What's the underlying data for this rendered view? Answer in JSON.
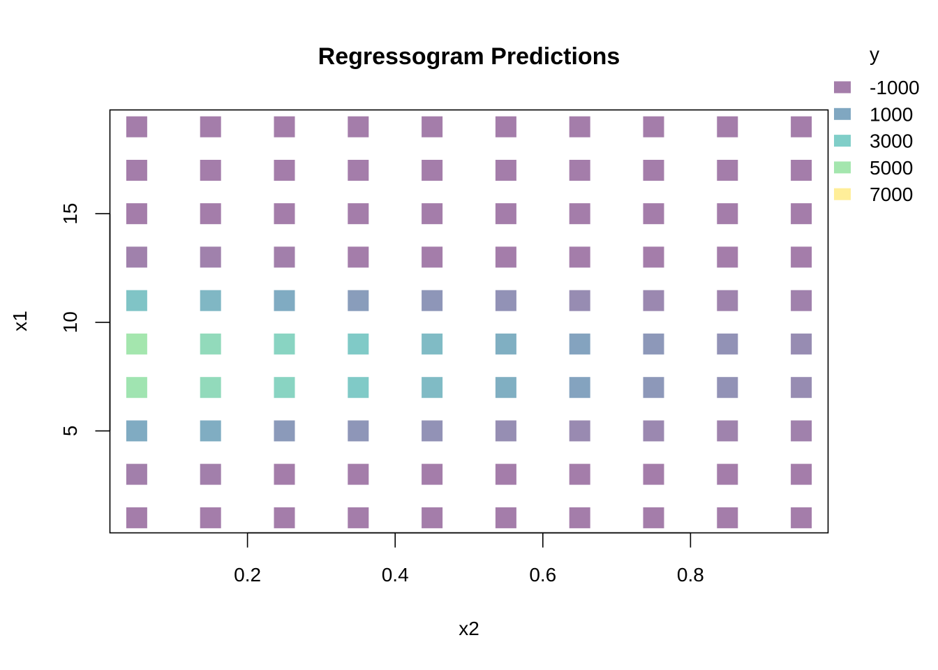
{
  "chart_data": {
    "type": "heatmap",
    "title": "Regressogram Predictions",
    "xlabel": "x2",
    "ylabel": "x1",
    "xlim": [
      0.0,
      1.0
    ],
    "ylim": [
      0.0,
      20.0
    ],
    "xticks": [
      {
        "value": 0.2,
        "label": "0.2"
      },
      {
        "value": 0.4,
        "label": "0.4"
      },
      {
        "value": 0.6,
        "label": "0.6"
      },
      {
        "value": 0.8,
        "label": "0.8"
      }
    ],
    "yticks": [
      {
        "value": 5,
        "label": "5"
      },
      {
        "value": 10,
        "label": "10"
      },
      {
        "value": 15,
        "label": "15"
      }
    ],
    "x": [
      0.05,
      0.15,
      0.25,
      0.35,
      0.45,
      0.55,
      0.65,
      0.75,
      0.85,
      0.95
    ],
    "y": [
      1,
      3,
      5,
      7,
      9,
      11,
      13,
      15,
      17,
      19
    ],
    "values": [
      [
        -1000,
        -1000,
        -1000,
        -1000,
        -1000,
        -1000,
        -1000,
        -1000,
        -1000,
        -1000
      ],
      [
        -900,
        -900,
        -1000,
        -1000,
        -1000,
        -1000,
        -1000,
        -1000,
        -1000,
        -1000
      ],
      [
        1200,
        1300,
        400,
        200,
        0,
        -200,
        -400,
        -500,
        -700,
        -800
      ],
      [
        4800,
        4000,
        3500,
        2800,
        2000,
        1400,
        800,
        300,
        0,
        -300
      ],
      [
        5000,
        4000,
        3500,
        2800,
        2000,
        1400,
        800,
        300,
        0,
        -300
      ],
      [
        2500,
        1800,
        1200,
        500,
        200,
        0,
        -300,
        -500,
        -700,
        -800
      ],
      [
        -800,
        -800,
        -900,
        -1000,
        -1000,
        -1000,
        -1000,
        -1000,
        -1000,
        -1000
      ],
      [
        -1000,
        -1000,
        -1000,
        -1000,
        -1000,
        -1000,
        -1000,
        -1000,
        -1000,
        -1000
      ],
      [
        -1000,
        -1000,
        -1000,
        -1000,
        -1000,
        -1000,
        -1000,
        -1000,
        -1000,
        -1000
      ],
      [
        -1000,
        -1000,
        -1000,
        -1000,
        -1000,
        -1000,
        -1000,
        -1000,
        -1000,
        -1000
      ]
    ],
    "legend": {
      "title": "y",
      "placement": "top-right",
      "entries": [
        {
          "label": "-1000",
          "value": -1000,
          "color": "#A47DAA"
        },
        {
          "label": "1000",
          "value": 1000,
          "color": "#80A7C1"
        },
        {
          "label": "3000",
          "value": 3000,
          "color": "#80CEC8"
        },
        {
          "label": "5000",
          "value": 5000,
          "color": "#A4E6AE"
        },
        {
          "label": "7000",
          "value": 7000,
          "color": "#FFEE99"
        }
      ]
    },
    "grid": false
  }
}
